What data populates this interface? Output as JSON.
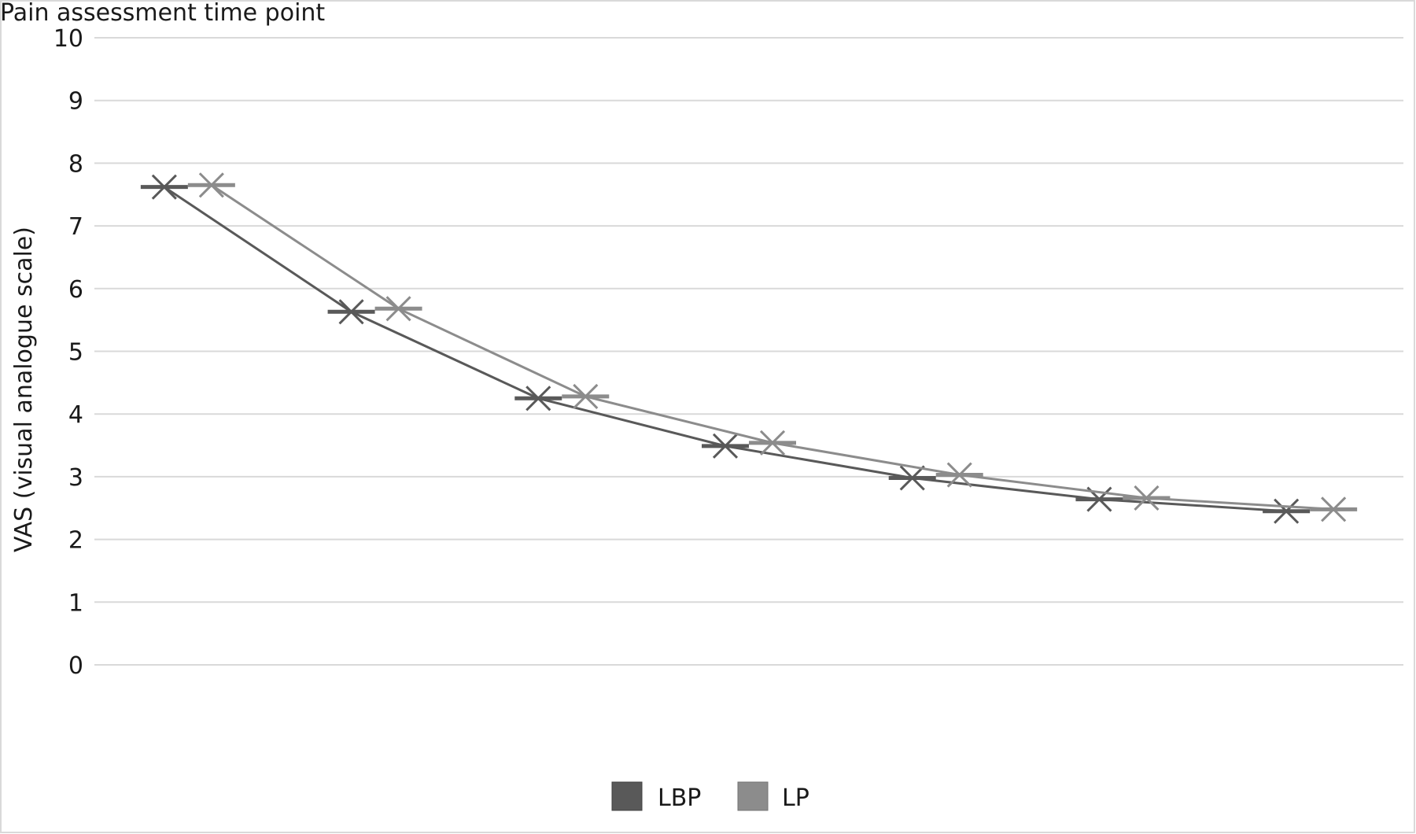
{
  "chart_data": {
    "type": "line",
    "title": "Pain assessment time point",
    "xlabel": "",
    "ylabel": "VAS (visual analogue scale)",
    "ylim": [
      0,
      10
    ],
    "yticks": [
      "0",
      "1",
      "2",
      "3",
      "4",
      "5",
      "6",
      "7",
      "8",
      "9",
      "10"
    ],
    "x_categories": 7,
    "grid": true,
    "legend_position": "bottom-center",
    "series": [
      {
        "name": "LBP",
        "color": "#595959",
        "marker": "x-cross-dash",
        "values": [
          7.62,
          5.63,
          4.25,
          3.49,
          2.98,
          2.64,
          2.45
        ]
      },
      {
        "name": "LP",
        "color": "#8c8c8c",
        "marker": "x-cross-dash",
        "values": [
          7.65,
          5.68,
          4.28,
          3.54,
          3.03,
          2.66,
          2.48
        ]
      }
    ]
  }
}
